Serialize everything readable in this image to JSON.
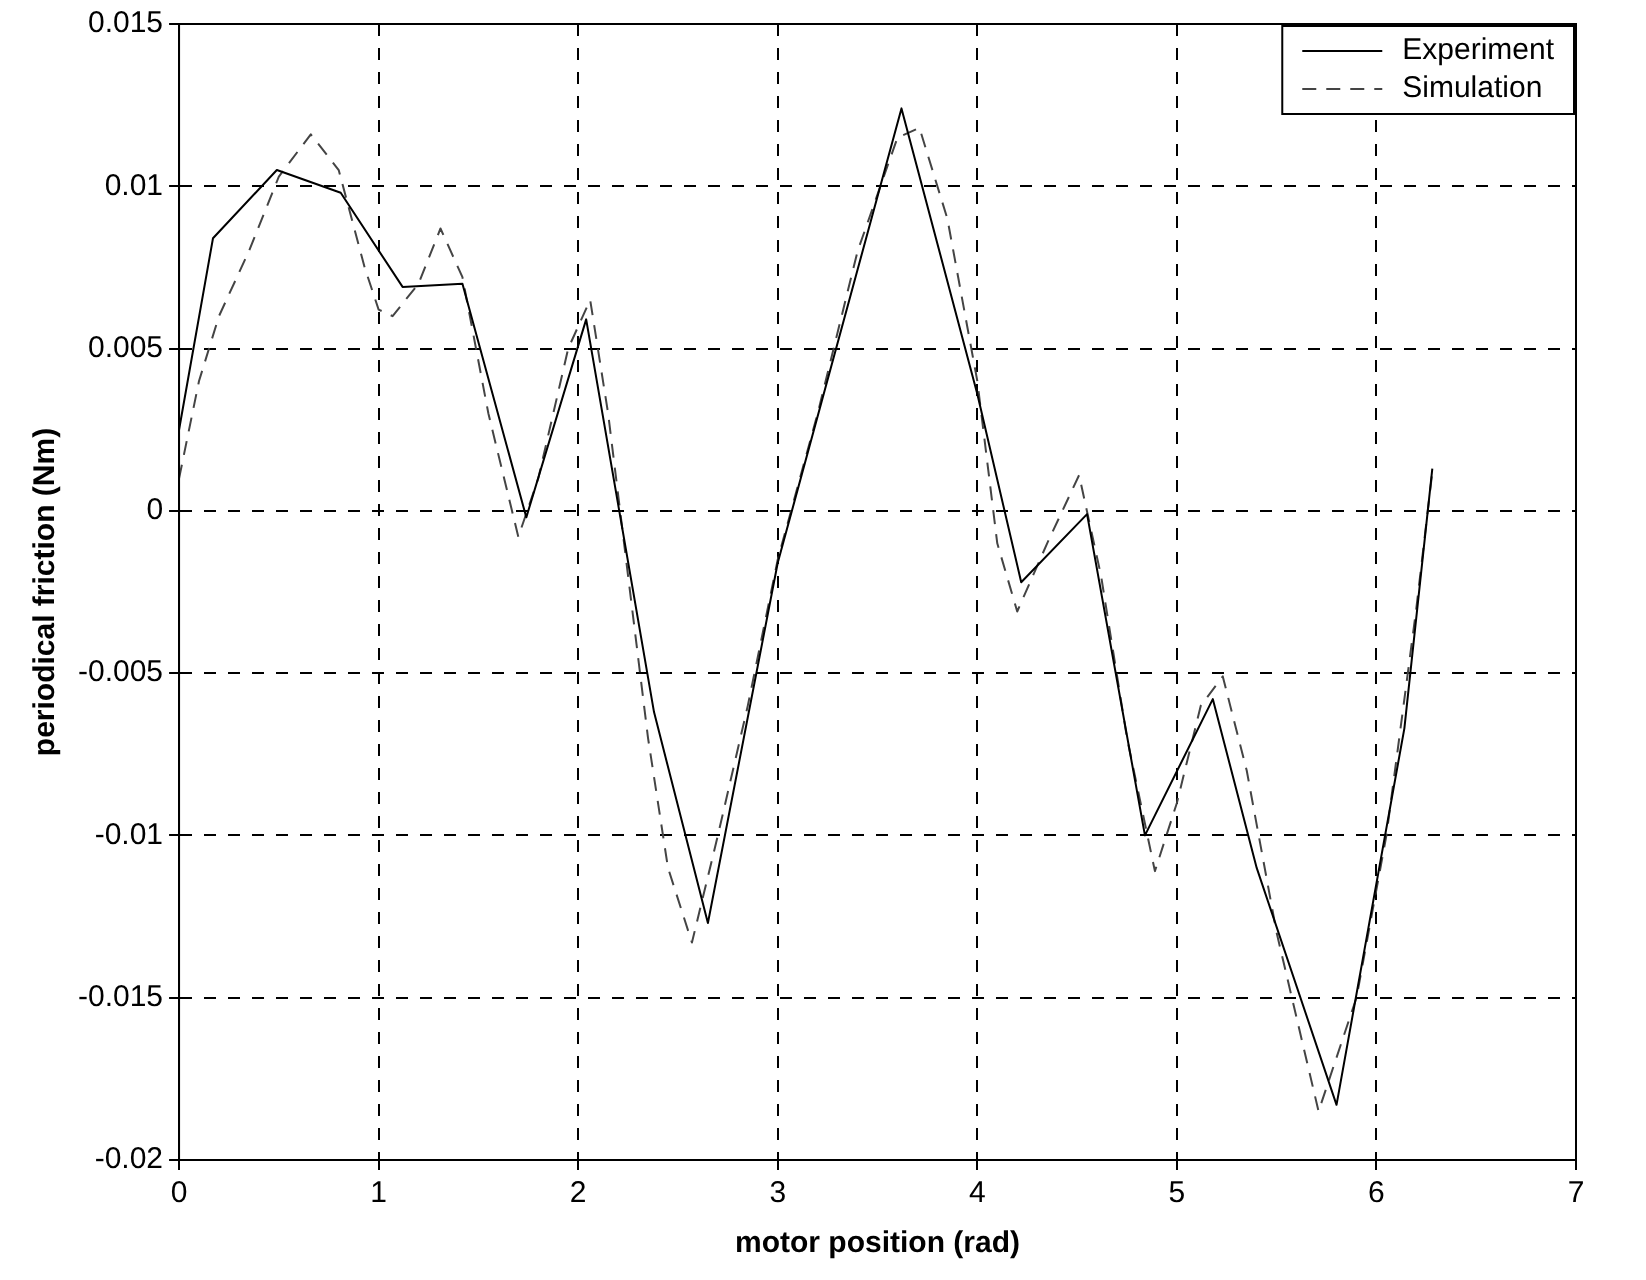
{
  "chart_data": {
    "type": "line",
    "xlabel": "motor position (rad)",
    "ylabel": "periodical friction (Nm)",
    "xlim": [
      0,
      7
    ],
    "xticks": [
      0,
      1,
      2,
      3,
      4,
      5,
      6,
      7
    ],
    "ylim": [
      -0.02,
      0.015
    ],
    "yticks": [
      -0.02,
      -0.015,
      -0.01,
      -0.005,
      0,
      0.005,
      0.01,
      0.015
    ],
    "grid": true,
    "legend": "top right",
    "marker": "none",
    "series": [
      {
        "name": "Experiment",
        "color": "#000000",
        "line_style": "solid",
        "x": [
          0,
          0.17,
          0.49,
          0.81,
          1.12,
          1.42,
          1.74,
          2.04,
          2.38,
          2.65,
          3.0,
          3.62,
          4.0,
          4.22,
          4.55,
          4.84,
          5.18,
          5.4,
          5.8,
          6.14,
          6.28
        ],
        "values": [
          0.0025,
          0.0084,
          0.0105,
          0.0098,
          0.0069,
          0.007,
          -0.0002,
          0.0059,
          -0.0062,
          -0.0127,
          -0.0016,
          0.0124,
          0.0036,
          -0.0022,
          -0.0001,
          -0.01,
          -0.0058,
          -0.011,
          -0.0183,
          -0.0067,
          0.0013
        ]
      },
      {
        "name": "Simulation",
        "color": "#444444",
        "line_style": "dashed",
        "x": [
          0,
          0.1,
          0.2,
          0.35,
          0.5,
          0.66,
          0.8,
          0.93,
          1.0,
          1.07,
          1.2,
          1.31,
          1.42,
          1.55,
          1.7,
          1.8,
          1.95,
          2.06,
          2.15,
          2.25,
          2.35,
          2.45,
          2.57,
          2.7,
          2.85,
          3.0,
          3.2,
          3.4,
          3.6,
          3.71,
          3.85,
          4.0,
          4.1,
          4.2,
          4.35,
          4.51,
          4.62,
          4.75,
          4.89,
          5.0,
          5.12,
          5.23,
          5.35,
          5.5,
          5.71,
          5.9,
          6.05,
          6.2,
          6.28
        ],
        "values": [
          0.001,
          0.004,
          0.006,
          0.008,
          0.0103,
          0.0116,
          0.0105,
          0.0075,
          0.0062,
          0.006,
          0.007,
          0.0087,
          0.0072,
          0.003,
          -0.0008,
          0.001,
          0.005,
          0.0065,
          0.003,
          -0.002,
          -0.007,
          -0.011,
          -0.0133,
          -0.01,
          -0.006,
          -0.0015,
          0.003,
          0.008,
          0.0115,
          0.0118,
          0.009,
          0.004,
          -0.001,
          -0.0031,
          -0.001,
          0.0011,
          -0.002,
          -0.007,
          -0.0111,
          -0.009,
          -0.006,
          -0.0051,
          -0.008,
          -0.013,
          -0.0185,
          -0.015,
          -0.01,
          -0.003,
          0.0012
        ]
      }
    ]
  }
}
